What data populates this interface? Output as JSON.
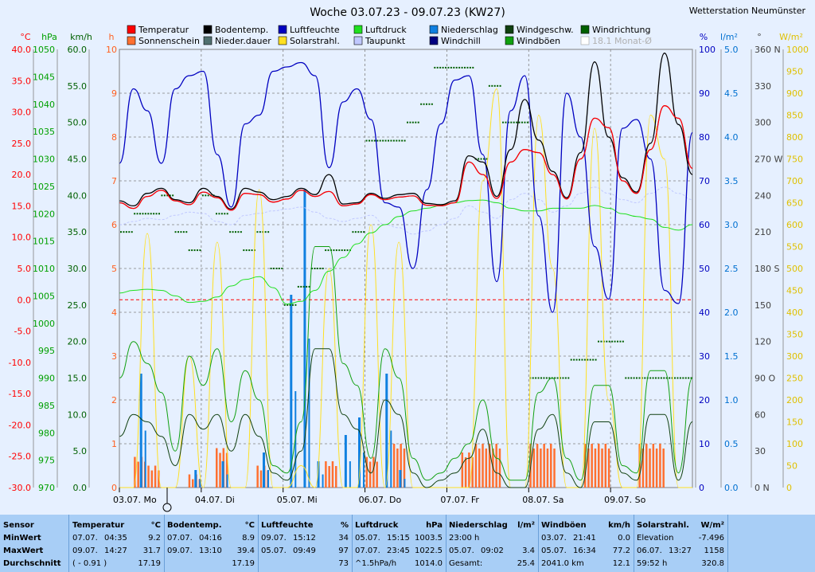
{
  "station": "Wetterstation Neumünster",
  "chart_data": {
    "type": "line",
    "title": "Woche 03.07.23 - 09.07.23 (KW27)",
    "x_labels": [
      "03.07. Mo",
      "04.07. Di",
      "05.07. Mi",
      "06.07. Do",
      "07.07. Fr",
      "08.07. Sa",
      "09.07. So"
    ],
    "grid": true,
    "left_axes": [
      {
        "unit": "°C",
        "color": "#ff0000",
        "ticks": [
          "40.0",
          "35.0",
          "30.0",
          "25.0",
          "20.0",
          "15.0",
          "10.0",
          "5.0",
          "0.0",
          "-5.0",
          "-10.0",
          "-15.0",
          "-20.0",
          "-25.0",
          "-30.0"
        ],
        "min": -30,
        "max": 40
      },
      {
        "unit": "hPa",
        "color": "#00a000",
        "ticks": [
          "1050",
          "1045",
          "1040",
          "1035",
          "1030",
          "1025",
          "1020",
          "1015",
          "1010",
          "1005",
          "1000",
          "995",
          "990",
          "985",
          "980",
          "975",
          "970"
        ],
        "min": 970,
        "max": 1050
      },
      {
        "unit": "km/h",
        "color": "#006000",
        "ticks": [
          "60.0",
          "55.0",
          "50.0",
          "45.0",
          "40.0",
          "35.0",
          "30.0",
          "25.0",
          "20.0",
          "15.0",
          "10.0",
          "5.0",
          "0.0"
        ],
        "min": 0,
        "max": 60
      },
      {
        "unit": "h",
        "color": "#ff6020",
        "ticks": [
          "10",
          "9",
          "8",
          "7",
          "6",
          "5",
          "4",
          "3",
          "2",
          "1",
          "0"
        ],
        "min": 0,
        "max": 10
      }
    ],
    "right_axes": [
      {
        "unit": "%",
        "color": "#0000c0",
        "ticks": [
          "100",
          "90",
          "80",
          "70",
          "60",
          "50",
          "40",
          "30",
          "20",
          "10",
          "0"
        ],
        "min": 0,
        "max": 100
      },
      {
        "unit": "l/m²",
        "color": "#0070d0",
        "ticks": [
          "5.0",
          "4.5",
          "4.0",
          "3.5",
          "3.0",
          "2.5",
          "2.0",
          "1.5",
          "1.0",
          "0.5",
          "0.0"
        ],
        "min": 0,
        "max": 5
      },
      {
        "unit": "°",
        "color": "#404040",
        "ticks": [
          "360 N",
          "330",
          "300",
          "270 W",
          "240",
          "210",
          "180 S",
          "150",
          "120",
          "90 O",
          "60",
          "30",
          "0 N"
        ],
        "min": 0,
        "max": 360
      },
      {
        "unit": "W/m²",
        "color": "#e0c000",
        "ticks": [
          "1000",
          "950",
          "900",
          "850",
          "800",
          "750",
          "700",
          "650",
          "600",
          "550",
          "500",
          "450",
          "400",
          "350",
          "300",
          "250",
          "200",
          "150",
          "100",
          "50",
          "0"
        ],
        "min": 0,
        "max": 1000
      }
    ],
    "legend": [
      {
        "label": "Temperatur",
        "color": "#ff0000"
      },
      {
        "label": "Bodentemp.",
        "color": "#000000"
      },
      {
        "label": "Luftfeuchte",
        "color": "#0000c0"
      },
      {
        "label": "Luftdruck",
        "color": "#20e020"
      },
      {
        "label": "Niederschlag",
        "color": "#1080e0"
      },
      {
        "label": "Windgeschw.",
        "color": "#104010"
      },
      {
        "label": "Windrichtung",
        "color": "#006000"
      },
      {
        "label": "Sonnenschein",
        "color": "#ff7030"
      },
      {
        "label": "Nieder.dauer",
        "color": "#507070"
      },
      {
        "label": "Solarstrahl.",
        "color": "#ffe020"
      },
      {
        "label": "Taupunkt",
        "color": "#c0c8ff"
      },
      {
        "label": "Windchill",
        "color": "#000080"
      },
      {
        "label": "Windböen",
        "color": "#10a010"
      },
      {
        "label": "18.1 Monat-Ø",
        "color": "#ffffff"
      }
    ],
    "series": [
      {
        "name": "Temperatur",
        "color": "#ff0000",
        "axis": "°C",
        "values": [
          15.5,
          14.6,
          16.5,
          17.5,
          15.8,
          15.2,
          17.2,
          16.3,
          14.3,
          17.0,
          16.8,
          15.6,
          16.1,
          17.5,
          16.5,
          17.3,
          15.0,
          15.3,
          16.8,
          16.0,
          16.4,
          16.6,
          15.1,
          15.0,
          15.5,
          22.0,
          20.0,
          16.2,
          22.0,
          24.0,
          23.5,
          20.0,
          16.1,
          22.5,
          29.0,
          27.5,
          19.0,
          17.0,
          24.0,
          31.0,
          29.0,
          21.0
        ]
      },
      {
        "name": "Bodentemp.",
        "color": "#000000",
        "axis": "°C",
        "values": [
          15.8,
          15.0,
          17.0,
          17.8,
          16.0,
          15.5,
          17.8,
          16.5,
          14.5,
          17.8,
          17.2,
          16.0,
          16.5,
          17.8,
          16.8,
          20.0,
          15.3,
          15.5,
          17.0,
          16.2,
          16.8,
          17.0,
          15.4,
          15.2,
          15.8,
          23.0,
          22.0,
          16.5,
          24.0,
          32.0,
          25.5,
          20.5,
          16.3,
          23.5,
          38.0,
          26.0,
          19.5,
          17.2,
          25.0,
          39.4,
          28.0,
          20.0
        ]
      },
      {
        "name": "Luftfeuchte",
        "color": "#0000c0",
        "axis": "%",
        "values": [
          74,
          91,
          86,
          74,
          91,
          94,
          95,
          76,
          64,
          83,
          85,
          95,
          96,
          97,
          94,
          73,
          88,
          91,
          84,
          65,
          64,
          50,
          68,
          83,
          93,
          94,
          76,
          47,
          86,
          94,
          62,
          40,
          90,
          80,
          55,
          43,
          82,
          84,
          75,
          45,
          42,
          81
        ]
      },
      {
        "name": "Luftdruck",
        "color": "#20e020",
        "axis": "hPa",
        "values": [
          1005.5,
          1006.0,
          1006.2,
          1006.0,
          1005.0,
          1003.8,
          1004.0,
          1004.8,
          1006.8,
          1008.0,
          1008.5,
          1006.5,
          1003.5,
          1004.0,
          1006.0,
          1009.5,
          1012.0,
          1014.5,
          1016.5,
          1018.0,
          1019.5,
          1020.5,
          1021.0,
          1021.5,
          1022.0,
          1022.4,
          1022.5,
          1022.0,
          1021.0,
          1020.5,
          1020.5,
          1021.0,
          1021.0,
          1021.0,
          1021.5,
          1021.0,
          1020.0,
          1019.5,
          1019.0,
          1017.5,
          1017.0,
          1018.0
        ]
      },
      {
        "name": "Solarstrahl.",
        "color": "#ffe020",
        "axis": "W/m²",
        "values": [
          0,
          0,
          580,
          0,
          0,
          300,
          0,
          560,
          0,
          0,
          680,
          0,
          0,
          50,
          0,
          500,
          0,
          0,
          600,
          0,
          560,
          0,
          0,
          0,
          0,
          0,
          700,
          910,
          0,
          0,
          850,
          500,
          0,
          0,
          820,
          200,
          0,
          0,
          850,
          750,
          0,
          0
        ]
      },
      {
        "name": "Windböen",
        "color": "#10a010",
        "axis": "km/h",
        "values": [
          15,
          20,
          17,
          13,
          5,
          18,
          14,
          19,
          9,
          16,
          12,
          3,
          2,
          9,
          33,
          33,
          17,
          14,
          4,
          19,
          15,
          4,
          1,
          2,
          4,
          6,
          12,
          4,
          1,
          1,
          13,
          15,
          4,
          1,
          14,
          14,
          3,
          2,
          16,
          16,
          2,
          15
        ]
      },
      {
        "name": "Windgeschw.",
        "color": "#104010",
        "axis": "km/h",
        "values": [
          7,
          10,
          9,
          7,
          3,
          10,
          8,
          10,
          5,
          10,
          7,
          2,
          1,
          5,
          19,
          19,
          10,
          8,
          2,
          12,
          10,
          2,
          0,
          1,
          2,
          4,
          8,
          2,
          0,
          0,
          8,
          10,
          2,
          0,
          9,
          9,
          2,
          1,
          10,
          10,
          1,
          9
        ]
      },
      {
        "name": "Windchill",
        "color": "#000080",
        "axis": "°C",
        "values": [
          15.5,
          14.6,
          16.5,
          17.5,
          15.8,
          15.2,
          17.2,
          16.3,
          14.3,
          17.0,
          16.8,
          15.6,
          16.1,
          17.5,
          16.5,
          17.3,
          15.0,
          15.3,
          16.8,
          16.0,
          16.4,
          16.6,
          15.1,
          15.0,
          15.5,
          22.0,
          20.0,
          16.2,
          22.0,
          24.0,
          23.5,
          20.0,
          16.1,
          22.5,
          29.0,
          27.5,
          19.0,
          17.0,
          24.0,
          31.0,
          29.0,
          21.0
        ]
      },
      {
        "name": "Taupunkt",
        "color": "#c0c8ff",
        "axis": "°C",
        "values": [
          12.0,
          12.5,
          13.0,
          12.8,
          13.5,
          14.0,
          13.8,
          12.5,
          12.0,
          13.5,
          13.8,
          14.2,
          14.5,
          14.8,
          14.0,
          13.0,
          12.5,
          13.0,
          13.5,
          12.0,
          11.5,
          10.5,
          11.0,
          12.0,
          13.0,
          15.0,
          14.0,
          13.0,
          16.0,
          17.0,
          16.0,
          14.0,
          15.0,
          17.0,
          18.0,
          17.0,
          16.0,
          15.5,
          17.0,
          18.0,
          17.0,
          16.0
        ]
      }
    ],
    "niederschlag_mm": [
      0,
      1.3,
      0,
      0,
      0,
      0.2,
      0,
      0.3,
      0,
      0,
      0.4,
      0,
      2.2,
      3.4,
      0.3,
      0,
      0.6,
      0.8,
      0,
      1.3,
      0.2,
      0,
      0,
      0,
      0,
      0,
      0,
      0,
      0,
      0,
      0,
      0,
      0,
      0,
      0,
      0,
      0,
      0,
      0,
      0,
      0,
      0
    ],
    "sonnenschein_h": [
      0,
      0.7,
      0.5,
      0,
      0,
      0.3,
      0,
      0.9,
      0,
      0,
      0.5,
      0,
      0,
      0,
      0,
      0.6,
      0,
      0,
      0.7,
      0,
      1.0,
      0,
      0,
      0,
      0,
      0.8,
      1.0,
      1.0,
      0,
      0,
      1.0,
      1.0,
      0,
      0,
      1.0,
      1.0,
      0,
      0,
      1.0,
      1.0,
      0,
      0
    ],
    "windrichtung_deg": [
      210,
      225,
      225,
      240,
      210,
      195,
      240,
      225,
      210,
      195,
      210,
      180,
      150,
      165,
      180,
      195,
      195,
      210,
      285,
      285,
      285,
      300,
      315,
      345,
      345,
      345,
      270,
      330,
      300,
      300,
      90,
      90,
      90,
      105,
      105,
      120,
      120,
      90,
      90,
      90,
      90,
      90
    ]
  },
  "stats": {
    "sensor": {
      "header": "Sensor",
      "min": "MinWert",
      "max": "MaxWert",
      "avg": "Durchschnitt"
    },
    "columns": [
      {
        "title": "Temperatur",
        "unit": "°C",
        "rows": [
          [
            "07.07.",
            "04:35",
            "9.2"
          ],
          [
            "09.07.",
            "14:27",
            "31.7"
          ],
          [
            "( - 0.91 )",
            "",
            "17.19"
          ]
        ]
      },
      {
        "title": "Bodentemp.",
        "unit": "°C",
        "rows": [
          [
            "07.07.",
            "04:16",
            "8.9"
          ],
          [
            "09.07.",
            "13:10",
            "39.4"
          ],
          [
            "",
            "",
            "17.19"
          ]
        ]
      },
      {
        "title": "Luftfeuchte",
        "unit": "%",
        "rows": [
          [
            "09.07.",
            "15:12",
            "34"
          ],
          [
            "05.07.",
            "09:49",
            "97"
          ],
          [
            "",
            "",
            "73"
          ]
        ]
      },
      {
        "title": "Luftdruck",
        "unit": "hPa",
        "rows": [
          [
            "05.07.",
            "15:15",
            "1003.5"
          ],
          [
            "07.07.",
            "23:45",
            "1022.5"
          ],
          [
            "^1.5hPa/h",
            "",
            "1014.0"
          ]
        ]
      },
      {
        "title": "Niederschlag",
        "unit": "l/m²",
        "rows": [
          [
            "23:00 h",
            "",
            ""
          ],
          [
            "05.07.",
            "09:02",
            "3.4"
          ],
          [
            "Gesamt:",
            "",
            "25.4"
          ]
        ]
      },
      {
        "title": "Windböen",
        "unit": "km/h",
        "rows": [
          [
            "03.07.",
            "21:41",
            "0.0"
          ],
          [
            "05.07.",
            "16:34",
            "77.2"
          ],
          [
            "2041.0 km",
            "",
            "12.1"
          ]
        ]
      },
      {
        "title": "Solarstrahl.",
        "unit": "W/m²",
        "rows": [
          [
            "Elevation",
            "",
            "-7.496"
          ],
          [
            "06.07.",
            "13:27",
            "1158"
          ],
          [
            "59:52 h",
            "",
            "320.8"
          ]
        ]
      }
    ]
  }
}
